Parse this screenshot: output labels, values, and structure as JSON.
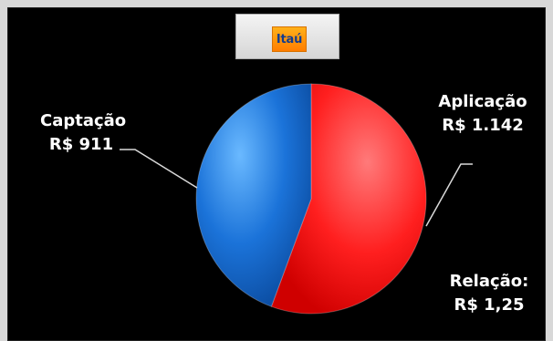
{
  "logo": {
    "text": "Itaú",
    "color_bg": "#ff8a00",
    "color_text": "#123c8d"
  },
  "chart_data": {
    "type": "pie",
    "title": "",
    "slices": [
      {
        "label": "Captação",
        "value": 911,
        "value_label": "R$ 911",
        "color": "#1b73d9"
      },
      {
        "label": "Aplicação",
        "value": 1142,
        "value_label": "R$ 1.142",
        "color": "#ff1f1f"
      }
    ],
    "annotation": {
      "label": "Relação:",
      "value_label": "R$ 1,25"
    },
    "legend": "none",
    "grid": false
  }
}
